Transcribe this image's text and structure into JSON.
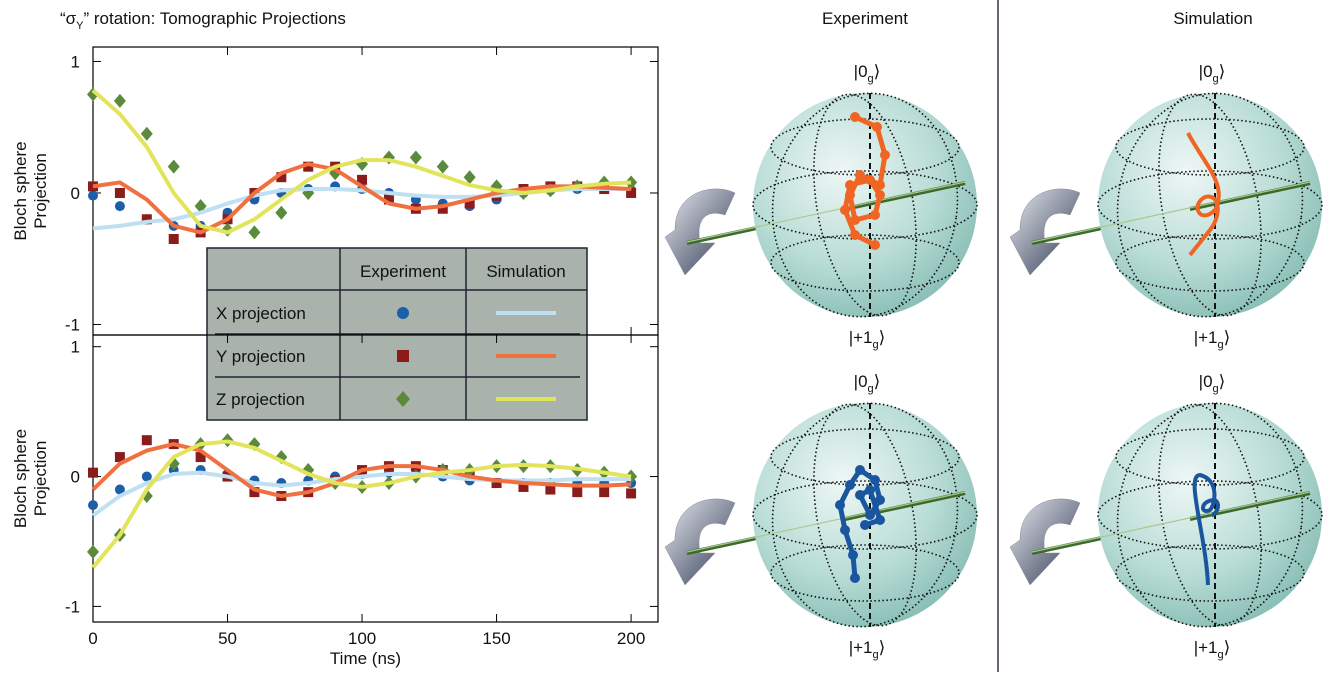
{
  "figure_title": [
    "“σ",
    "Y",
    "” rotation: Tomographic Projections"
  ],
  "chart_data": [
    {
      "type": "line",
      "ylabel": [
        "Bloch sphere",
        "Projection"
      ],
      "x": [
        0,
        10,
        20,
        30,
        40,
        50,
        60,
        70,
        80,
        90,
        100,
        110,
        120,
        130,
        140,
        150,
        160,
        170,
        180,
        190,
        200
      ],
      "xlim": [
        0,
        210
      ],
      "ylim": [
        -1.08,
        1.11
      ],
      "yticks": [
        -1,
        0,
        1
      ],
      "legend_columns": [
        "Experiment",
        "Simulation"
      ],
      "series": [
        {
          "name": "X projection",
          "style": "circle",
          "color": "#1d5ea8",
          "values": [
            -0.02,
            -0.1,
            -0.2,
            -0.25,
            -0.25,
            -0.15,
            -0.05,
            0.0,
            0.03,
            0.05,
            0.03,
            0.0,
            -0.05,
            -0.08,
            -0.1,
            -0.05,
            0.0,
            0.02,
            0.03,
            0.03,
            0.02
          ]
        },
        {
          "name": "Y projection",
          "style": "square",
          "color": "#8b1c1c",
          "values": [
            0.05,
            0.0,
            -0.2,
            -0.35,
            -0.3,
            -0.2,
            0.0,
            0.12,
            0.2,
            0.2,
            0.1,
            -0.05,
            -0.12,
            -0.12,
            -0.08,
            -0.02,
            0.03,
            0.05,
            0.05,
            0.03,
            0.0
          ]
        },
        {
          "name": "Z projection",
          "style": "diamond",
          "color": "#5b8a3c",
          "values": [
            0.75,
            0.7,
            0.45,
            0.2,
            -0.1,
            -0.28,
            -0.3,
            -0.15,
            0.0,
            0.15,
            0.22,
            0.27,
            0.27,
            0.2,
            0.12,
            0.05,
            0.0,
            0.02,
            0.05,
            0.08,
            0.08
          ]
        },
        {
          "name": "X projection",
          "style": "line",
          "color": "#bfe0f2",
          "values": [
            -0.27,
            -0.25,
            -0.22,
            -0.2,
            -0.15,
            -0.08,
            -0.02,
            0.02,
            0.03,
            0.03,
            0.02,
            0.0,
            -0.02,
            -0.03,
            -0.03,
            -0.02,
            0.0,
            0.02,
            0.03,
            0.03,
            0.03
          ]
        },
        {
          "name": "Y projection",
          "style": "line",
          "color": "#f07040",
          "values": [
            0.05,
            0.08,
            -0.05,
            -0.25,
            -0.3,
            -0.2,
            0.0,
            0.15,
            0.22,
            0.18,
            0.05,
            -0.08,
            -0.12,
            -0.1,
            -0.05,
            0.0,
            0.03,
            0.05,
            0.05,
            0.04,
            0.03
          ]
        },
        {
          "name": "Z projection",
          "style": "line",
          "color": "#e2e45c",
          "values": [
            0.78,
            0.6,
            0.35,
            0.0,
            -0.25,
            -0.3,
            -0.2,
            -0.05,
            0.1,
            0.2,
            0.25,
            0.25,
            0.2,
            0.13,
            0.06,
            0.02,
            0.0,
            0.02,
            0.05,
            0.07,
            0.08
          ]
        }
      ]
    },
    {
      "type": "line",
      "ylabel": [
        "Bloch sphere",
        "Projection"
      ],
      "xlabel": "Time (ns)",
      "x": [
        0,
        10,
        20,
        30,
        40,
        50,
        60,
        70,
        80,
        90,
        100,
        110,
        120,
        130,
        140,
        150,
        160,
        170,
        180,
        190,
        200
      ],
      "xlim": [
        0,
        210
      ],
      "ylim": [
        -1.12,
        1.09
      ],
      "yticks": [
        -1,
        0,
        1
      ],
      "xticks": [
        0,
        50,
        100,
        150,
        200
      ],
      "series": [
        {
          "name": "X projection",
          "style": "circle",
          "color": "#1d5ea8",
          "values": [
            -0.22,
            -0.1,
            0.0,
            0.05,
            0.05,
            0.02,
            -0.03,
            -0.05,
            -0.03,
            0.0,
            0.02,
            0.03,
            0.02,
            0.0,
            -0.03,
            -0.05,
            -0.05,
            -0.05,
            -0.05,
            -0.05,
            -0.05
          ]
        },
        {
          "name": "Y projection",
          "style": "square",
          "color": "#8b1c1c",
          "values": [
            0.03,
            0.15,
            0.28,
            0.25,
            0.15,
            0.0,
            -0.12,
            -0.15,
            -0.12,
            -0.03,
            0.05,
            0.08,
            0.08,
            0.05,
            0.0,
            -0.05,
            -0.08,
            -0.1,
            -0.12,
            -0.12,
            -0.13
          ]
        },
        {
          "name": "Z projection",
          "style": "diamond",
          "color": "#5b8a3c",
          "values": [
            -0.58,
            -0.45,
            -0.15,
            0.1,
            0.25,
            0.28,
            0.25,
            0.15,
            0.05,
            -0.05,
            -0.08,
            -0.05,
            0.0,
            0.05,
            0.05,
            0.08,
            0.08,
            0.08,
            0.05,
            0.03,
            0.0
          ]
        },
        {
          "name": "X projection",
          "style": "line",
          "color": "#bfe0f2",
          "values": [
            -0.3,
            -0.15,
            -0.05,
            0.02,
            0.03,
            0.0,
            -0.05,
            -0.07,
            -0.05,
            -0.02,
            0.0,
            0.02,
            0.02,
            0.0,
            -0.02,
            -0.03,
            -0.03,
            -0.03,
            -0.02,
            -0.02,
            -0.02
          ]
        },
        {
          "name": "Y projection",
          "style": "line",
          "color": "#f07040",
          "values": [
            -0.1,
            0.1,
            0.2,
            0.25,
            0.2,
            0.05,
            -0.1,
            -0.15,
            -0.12,
            -0.05,
            0.05,
            0.08,
            0.08,
            0.05,
            0.0,
            -0.03,
            -0.05,
            -0.06,
            -0.07,
            -0.07,
            -0.06
          ]
        },
        {
          "name": "Z projection",
          "style": "line",
          "color": "#e2e45c",
          "values": [
            -0.7,
            -0.45,
            -0.1,
            0.15,
            0.25,
            0.27,
            0.22,
            0.12,
            0.02,
            -0.05,
            -0.08,
            -0.05,
            0.0,
            0.03,
            0.05,
            0.08,
            0.09,
            0.08,
            0.06,
            0.03,
            0.0
          ]
        }
      ]
    }
  ],
  "panels": {
    "columns": [
      "Experiment",
      "Simulation"
    ],
    "ket_top": [
      "|0",
      "g",
      "⟩"
    ],
    "ket_bottom": [
      "|+1",
      "g",
      "⟩"
    ]
  }
}
